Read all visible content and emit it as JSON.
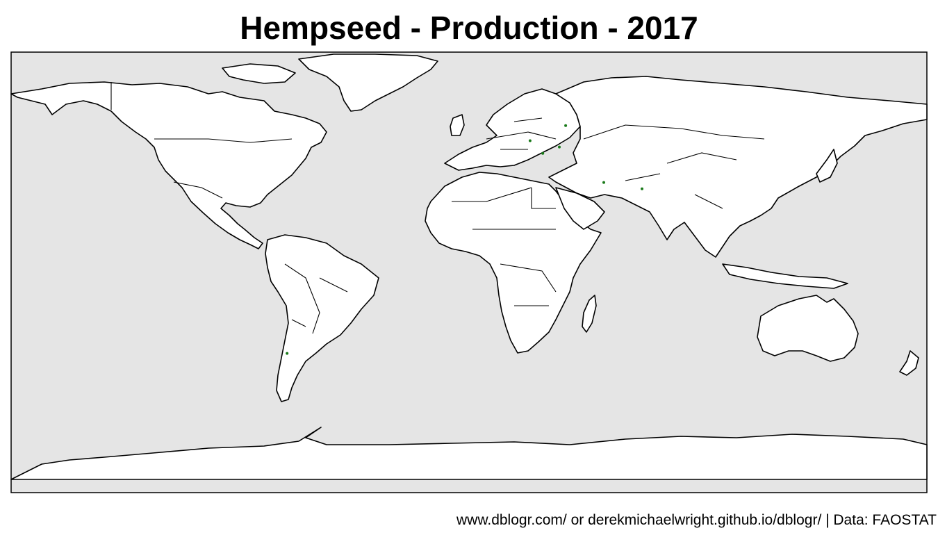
{
  "map": {
    "title": "Hempseed - Production - 2017",
    "caption": "www.dblogr.com/ or derekmichaelwright.github.io/dblogr/ | Data: FAOSTAT",
    "projection": "equirectangular",
    "extent": {
      "lon": [
        -180,
        180
      ],
      "lat": [
        -90,
        84
      ]
    },
    "colors": {
      "ocean": "#e5e5e5",
      "land": "#ffffff",
      "outline": "#000000",
      "marker": "#1a7a1a"
    },
    "production_points": [
      {
        "lon": 38.0,
        "lat": 55.0
      },
      {
        "lon": 24.0,
        "lat": 49.0
      },
      {
        "lon": 35.5,
        "lat": 46.5
      },
      {
        "lon": 29.0,
        "lat": 44.0
      },
      {
        "lon": 53.0,
        "lat": 32.5
      },
      {
        "lon": 68.0,
        "lat": 30.0
      },
      {
        "lon": -71.5,
        "lat": -35.0
      }
    ]
  }
}
